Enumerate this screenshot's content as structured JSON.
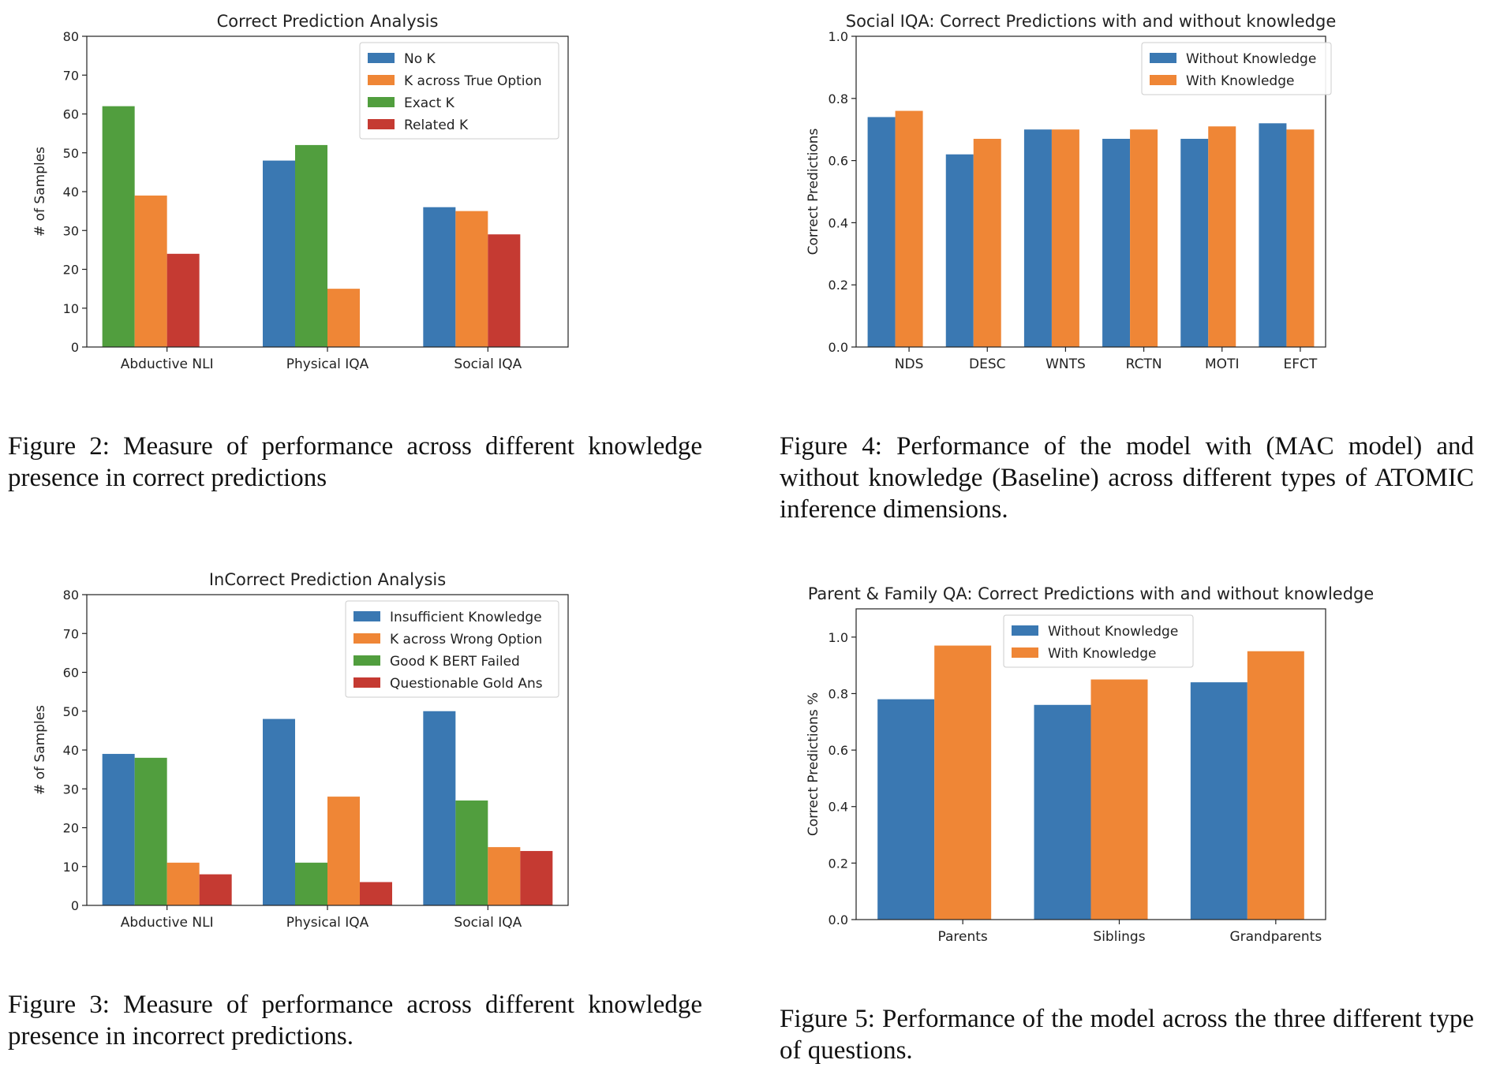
{
  "colors": {
    "blue": "#3a78b2",
    "orange": "#ef8636",
    "green": "#519e3e",
    "red": "#c53a32"
  },
  "chart_data": [
    {
      "type": "bar",
      "title": "Correct Prediction Analysis",
      "ylabel": "# of Samples",
      "xlabel": "",
      "categories": [
        "Abductive NLI",
        "Physical IQA",
        "Social IQA"
      ],
      "ylim": [
        0,
        80
      ],
      "yticks": [
        "0",
        "10",
        "20",
        "30",
        "40",
        "50",
        "60",
        "70",
        "80"
      ],
      "legend_position": "top-right",
      "series": [
        {
          "name": "No K",
          "color": "#3a78b2",
          "values": [
            0,
            48,
            36
          ]
        },
        {
          "name": "K across True Option",
          "color": "#ef8636",
          "values": [
            39,
            15,
            35
          ]
        },
        {
          "name": "Exact K",
          "color": "#519e3e",
          "values": [
            62,
            52,
            0
          ]
        },
        {
          "name": "Related K",
          "color": "#c53a32",
          "values": [
            24,
            0,
            29
          ]
        }
      ],
      "bar_order": [
        [
          2,
          1,
          3
        ],
        [
          0,
          2,
          1
        ],
        [
          0,
          1,
          3
        ]
      ]
    },
    {
      "type": "bar",
      "title": "Social IQA: Correct Predictions with and without knowledge",
      "ylabel": "Correct Predictions",
      "xlabel": "",
      "categories": [
        "NDS",
        "DESC",
        "WNTS",
        "RCTN",
        "MOTI",
        "EFCT"
      ],
      "ylim": [
        0,
        1.0
      ],
      "yticks": [
        "0.0",
        "0.2",
        "0.4",
        "0.6",
        "0.8",
        "1.0"
      ],
      "legend_position": "top-right",
      "series": [
        {
          "name": "Without Knowledge",
          "color": "#3a78b2",
          "values": [
            0.74,
            0.62,
            0.7,
            0.67,
            0.67,
            0.72
          ]
        },
        {
          "name": "With Knowledge",
          "color": "#ef8636",
          "values": [
            0.76,
            0.67,
            0.7,
            0.7,
            0.71,
            0.7
          ]
        }
      ]
    },
    {
      "type": "bar",
      "title": "InCorrect Prediction Analysis",
      "ylabel": "# of Samples",
      "xlabel": "",
      "categories": [
        "Abductive NLI",
        "Physical IQA",
        "Social IQA"
      ],
      "ylim": [
        0,
        80
      ],
      "yticks": [
        "0",
        "10",
        "20",
        "30",
        "40",
        "50",
        "60",
        "70",
        "80"
      ],
      "legend_position": "top-right",
      "series": [
        {
          "name": "Insufficient Knowledge",
          "color": "#3a78b2",
          "values": [
            39,
            48,
            50
          ]
        },
        {
          "name": "K across Wrong Option",
          "color": "#ef8636",
          "values": [
            11,
            28,
            15
          ]
        },
        {
          "name": "Good K BERT Failed",
          "color": "#519e3e",
          "values": [
            38,
            11,
            27
          ]
        },
        {
          "name": "Questionable Gold Ans",
          "color": "#c53a32",
          "values": [
            8,
            6,
            14
          ]
        }
      ],
      "bar_order": [
        [
          0,
          2,
          1,
          3
        ],
        [
          0,
          2,
          1,
          3
        ],
        [
          0,
          2,
          1,
          3
        ]
      ]
    },
    {
      "type": "bar",
      "title": "Parent & Family QA: Correct Predictions with and without knowledge",
      "ylabel": "Correct Predictions %",
      "xlabel": "",
      "categories": [
        "Parents",
        "Siblings",
        "Grandparents"
      ],
      "ylim": [
        0,
        1.1
      ],
      "yticks": [
        "0.0",
        "0.2",
        "0.4",
        "0.6",
        "0.8",
        "1.0"
      ],
      "legend_position": "top-center",
      "series": [
        {
          "name": "Without Knowledge",
          "color": "#3a78b2",
          "values": [
            0.78,
            0.76,
            0.84
          ]
        },
        {
          "name": "With Knowledge",
          "color": "#ef8636",
          "values": [
            0.97,
            0.85,
            0.95
          ]
        }
      ]
    }
  ],
  "captions": {
    "fig2": "Figure 2: Measure of performance across different knowledge presence in correct predictions",
    "fig4": "Figure 4: Performance of the model with (MAC model) and without knowledge (Baseline) across different types of ATOMIC inference dimensions.",
    "fig3": "Figure 3: Measure of performance across different knowledge presence in incorrect predictions.",
    "fig5": "Figure 5: Performance of the model across the three different type of questions."
  }
}
